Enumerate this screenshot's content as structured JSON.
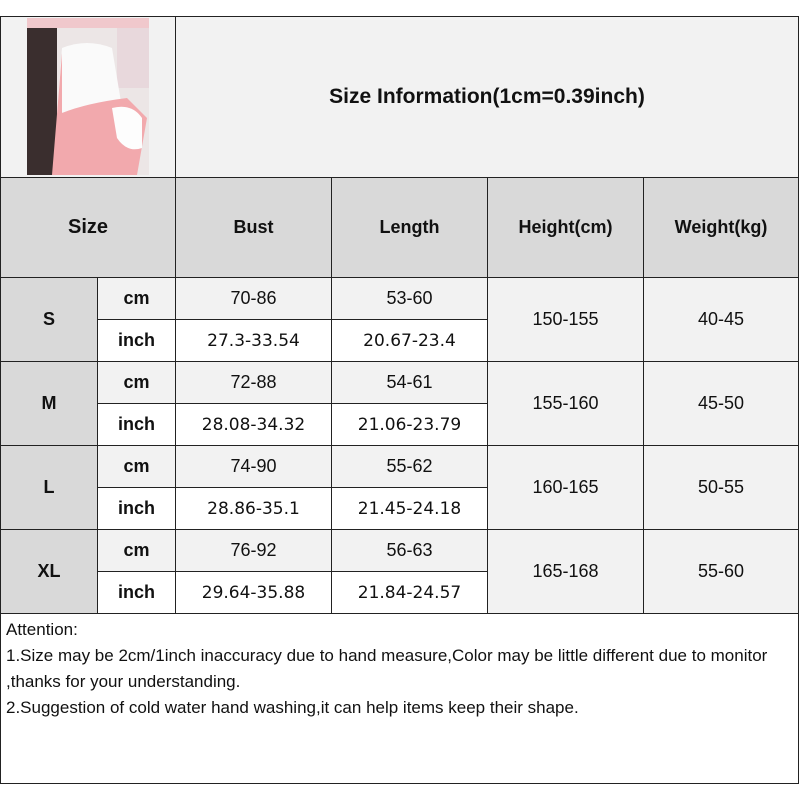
{
  "title": "Size Information(1cm=0.39inch)",
  "headers": {
    "size": "Size",
    "bust": "Bust",
    "length": "Length",
    "height": "Height(cm)",
    "weight": "Weight(kg)"
  },
  "units": {
    "cm": "cm",
    "inch": "inch"
  },
  "rows": [
    {
      "size": "S",
      "bust_cm": "70-86",
      "bust_inch": "27.3-33.54",
      "length_cm": "53-60",
      "length_inch": "20.67-23.4",
      "height": "150-155",
      "weight": "40-45"
    },
    {
      "size": "M",
      "bust_cm": "72-88",
      "bust_inch": "28.08-34.32",
      "length_cm": "54-61",
      "length_inch": "21.06-23.79",
      "height": "155-160",
      "weight": "45-50"
    },
    {
      "size": "L",
      "bust_cm": "74-90",
      "bust_inch": "28.86-35.1",
      "length_cm": "55-62",
      "length_inch": "21.45-24.18",
      "height": "160-165",
      "weight": "50-55"
    },
    {
      "size": "XL",
      "bust_cm": "76-92",
      "bust_inch": "29.64-35.88",
      "length_cm": "56-63",
      "length_inch": "21.84-24.57",
      "height": "165-168",
      "weight": "55-60"
    }
  ],
  "attention": {
    "heading": "Attention:",
    "items": [
      "1.Size may be 2cm/1inch inaccuracy due to hand measure,Color may be little different due to monitor ,thanks for your understanding.",
      "2.Suggestion of cold water hand washing,it can help items keep their shape."
    ]
  },
  "colors": {
    "header_gray": "#d9d9d9",
    "light_gray": "#f2f2f2",
    "border": "#222222"
  }
}
